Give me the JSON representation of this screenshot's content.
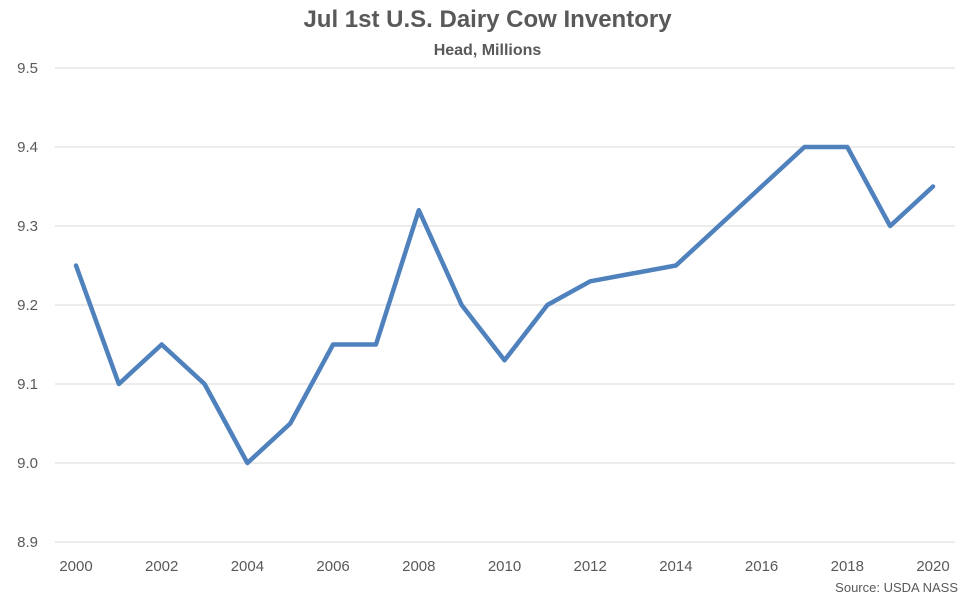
{
  "chart_data": {
    "type": "line",
    "title": "Jul 1st U.S. Dairy Cow Inventory",
    "subtitle": "Head, Millions",
    "source": "Source: USDA NASS",
    "xlabel": "",
    "ylabel": "",
    "ylim": [
      8.9,
      9.5
    ],
    "xlim": [
      2000,
      2020
    ],
    "y_ticks": [
      "8.9",
      "9.0",
      "9.1",
      "9.2",
      "9.3",
      "9.4",
      "9.5"
    ],
    "x_ticks": [
      "2000",
      "2002",
      "2004",
      "2006",
      "2008",
      "2010",
      "2012",
      "2014",
      "2016",
      "2018",
      "2020"
    ],
    "grid": "horizontal",
    "legend": "none",
    "series": [
      {
        "color": "#4f81bd",
        "x": [
          2000,
          2001,
          2002,
          2003,
          2004,
          2005,
          2006,
          2007,
          2008,
          2009,
          2010,
          2011,
          2012,
          2013,
          2014,
          2015,
          2016,
          2017,
          2018,
          2019,
          2020
        ],
        "values": [
          9.25,
          9.1,
          9.15,
          9.1,
          9.0,
          9.05,
          9.15,
          9.15,
          9.32,
          9.2,
          9.13,
          9.2,
          9.23,
          9.24,
          9.25,
          9.3,
          9.35,
          9.4,
          9.4,
          9.3,
          9.35
        ]
      }
    ]
  }
}
